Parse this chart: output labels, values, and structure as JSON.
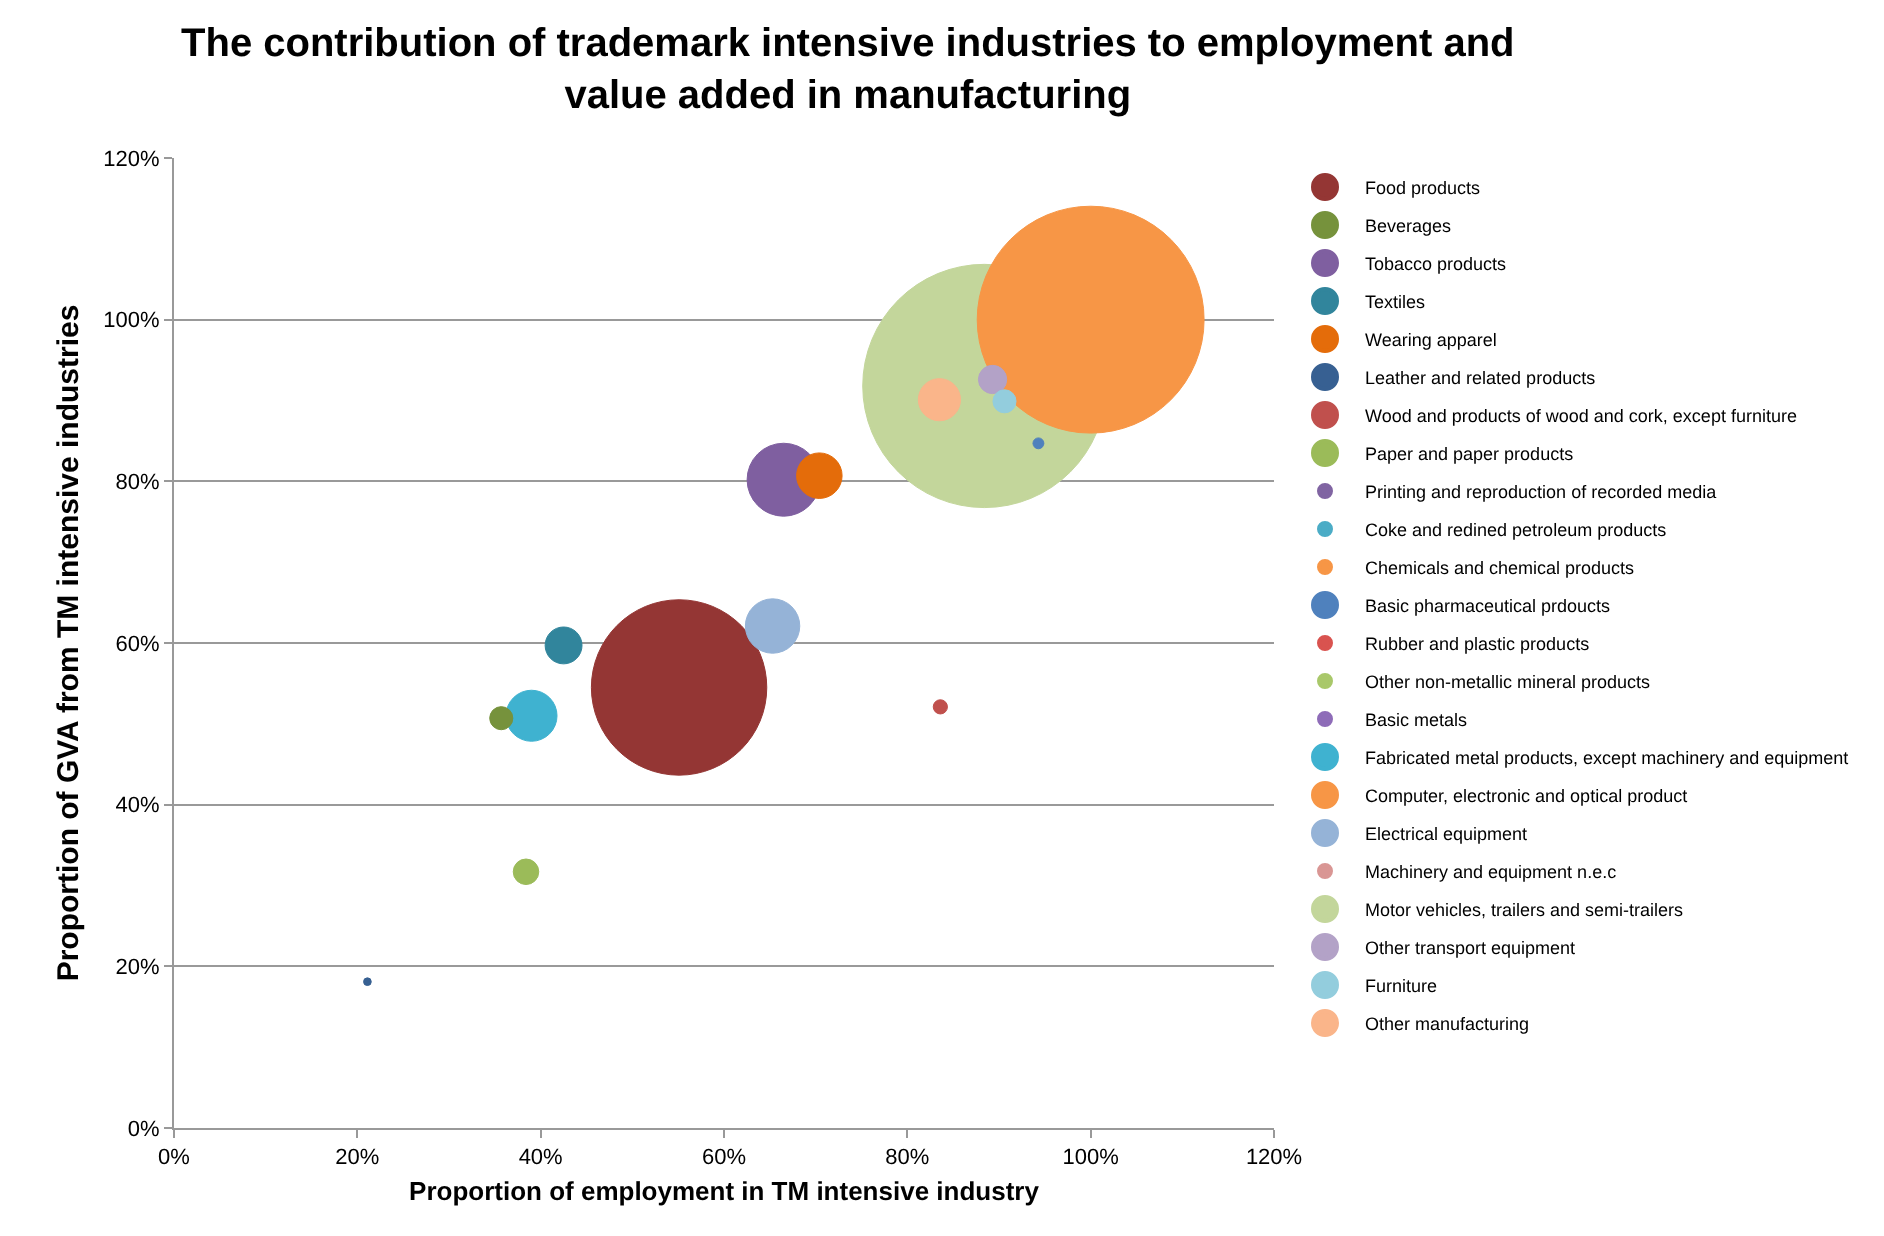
{
  "chart_data": {
    "type": "bubble",
    "title": "The contribution of trademark intensive industries to employment and value added in manufacturing",
    "xlabel": "Proportion of employment in TM intensive industry",
    "ylabel": "Proportion of GVA from TM intensive industries",
    "xlim": [
      0,
      120
    ],
    "ylim": [
      0,
      120
    ],
    "xticks": [
      {
        "value": 0,
        "label": "0%"
      },
      {
        "value": 20,
        "label": "20%"
      },
      {
        "value": 40,
        "label": "40%"
      },
      {
        "value": 60,
        "label": "60%"
      },
      {
        "value": 80,
        "label": "80%"
      },
      {
        "value": 100,
        "label": "100%"
      },
      {
        "value": 120,
        "label": "120%"
      }
    ],
    "yticks": [
      {
        "value": 0,
        "label": "0%"
      },
      {
        "value": 20,
        "label": "20%"
      },
      {
        "value": 40,
        "label": "40%"
      },
      {
        "value": 60,
        "label": "60%"
      },
      {
        "value": 80,
        "label": "80%"
      },
      {
        "value": 100,
        "label": "100%"
      },
      {
        "value": 120,
        "label": "120%"
      }
    ],
    "grid": "y",
    "legend": "right",
    "series": [
      {
        "name": "Food products",
        "color": "#943634",
        "x": [
          55.1
        ],
        "values": [
          54.5
        ],
        "sizes": [
          0.52
        ]
      },
      {
        "name": "Beverages",
        "color": "#76923c",
        "x": [
          35.7
        ],
        "values": [
          50.7
        ],
        "sizes": [
          0.009
        ]
      },
      {
        "name": "Tobacco products",
        "color": "#7f5fa0",
        "x": [
          66.5
        ],
        "values": [
          80.2
        ],
        "sizes": [
          0.09
        ]
      },
      {
        "name": "Textiles",
        "color": "#31859c",
        "x": [
          42.5
        ],
        "values": [
          59.7
        ],
        "sizes": [
          0.023
        ]
      },
      {
        "name": "Wearing apparel",
        "color": "#e46c0a",
        "x": [
          70.4
        ],
        "values": [
          80.7
        ],
        "sizes": [
          0.035
        ]
      },
      {
        "name": "Leather and related products",
        "color": "#376092",
        "x": [
          21.1
        ],
        "values": [
          18.1
        ],
        "sizes": [
          0.001
        ]
      },
      {
        "name": "Wood and products of wood and cork, except furniture",
        "color": "#c0504d",
        "x": [
          83.6
        ],
        "values": [
          52.1
        ],
        "sizes": [
          0.0034
        ]
      },
      {
        "name": "Paper and paper products",
        "color": "#9bbb59",
        "x": [
          38.4
        ],
        "values": [
          31.7
        ],
        "sizes": [
          0.011
        ]
      },
      {
        "name": "Printing and reproduction of recorded media",
        "color": "#8064a2",
        "x": [
          null
        ],
        "values": [
          null
        ],
        "sizes": [
          null
        ]
      },
      {
        "name": "Coke and redined petroleum products",
        "color": "#4bacc6",
        "x": [
          null
        ],
        "values": [
          null
        ],
        "sizes": [
          null
        ]
      },
      {
        "name": "Chemicals and chemical products",
        "color": "#f79646",
        "x": [
          null
        ],
        "values": [
          null
        ],
        "sizes": [
          null
        ]
      },
      {
        "name": "Basic pharmaceutical prdoucts",
        "color": "#4f81bd",
        "x": [
          94.3
        ],
        "values": [
          84.7
        ],
        "sizes": [
          0.002
        ]
      },
      {
        "name": "Rubber and plastic products",
        "color": "#d9534f",
        "x": [
          null
        ],
        "values": [
          null
        ],
        "sizes": [
          null
        ]
      },
      {
        "name": "Other non-metallic mineral products",
        "color": "#a9c86a",
        "x": [
          null
        ],
        "values": [
          null
        ],
        "sizes": [
          null
        ]
      },
      {
        "name": "Basic metals",
        "color": "#8e6cb8",
        "x": [
          null
        ],
        "values": [
          null
        ],
        "sizes": [
          null
        ]
      },
      {
        "name": "Fabricated metal products, except machinery and equipment",
        "color": "#3fb2d0",
        "x": [
          39.0
        ],
        "values": [
          51.0
        ],
        "sizes": [
          0.044
        ]
      },
      {
        "name": "Computer, electronic and optical product",
        "color": "#f79646",
        "x": [
          100
        ],
        "values": [
          100
        ],
        "sizes": [
          0.87
        ]
      },
      {
        "name": "Electrical equipment",
        "color": "#95b3d7",
        "x": [
          65.3
        ],
        "values": [
          62.1
        ],
        "sizes": [
          0.05
        ]
      },
      {
        "name": "Machinery and equipment n.e.c",
        "color": "#d99694",
        "x": [
          null
        ],
        "values": [
          null
        ],
        "sizes": [
          null
        ]
      },
      {
        "name": "Motor vehicles, trailers and semi-trailers",
        "color": "#c3d69b",
        "x": [
          88.4
        ],
        "values": [
          91.8
        ],
        "sizes": [
          1
        ]
      },
      {
        "name": "Other transport equipment",
        "color": "#b3a2c7",
        "x": [
          89.3
        ],
        "values": [
          92.6
        ],
        "sizes": [
          0.0135
        ]
      },
      {
        "name": "Furniture",
        "color": "#93cddd",
        "x": [
          90.6
        ],
        "values": [
          89.9
        ],
        "sizes": [
          0.009
        ]
      },
      {
        "name": "Other manufacturing",
        "color": "#fab58a",
        "x": [
          83.5
        ],
        "values": [
          90.1
        ],
        "sizes": [
          0.03
        ]
      }
    ]
  }
}
